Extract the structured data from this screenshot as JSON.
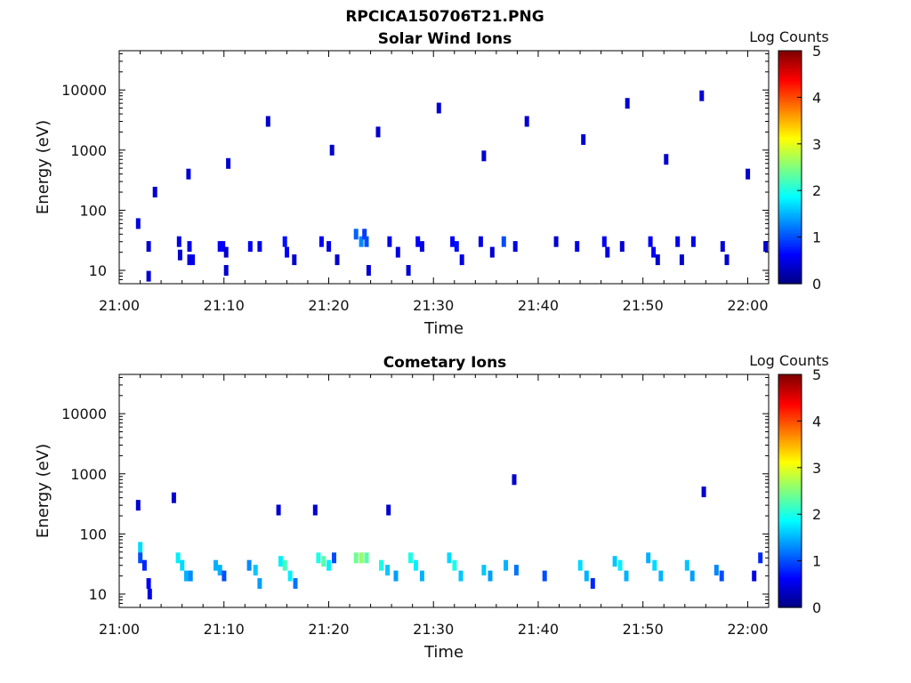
{
  "figure_title": "RPCICA150706T21.PNG",
  "colorbar": {
    "label": "Log Counts",
    "ticks": [
      "0",
      "1",
      "2",
      "3",
      "4",
      "5"
    ],
    "colormap": [
      "#00007f",
      "#0000ff",
      "#007fff",
      "#00ffff",
      "#7fff7f",
      "#ffff00",
      "#ff7f00",
      "#ff0000",
      "#7f0000"
    ]
  },
  "chart_data": [
    {
      "type": "heatmap",
      "title": "Solar Wind Ions",
      "xlabel": "Time",
      "ylabel": "Energy (eV)",
      "x_ticks": [
        "21:00",
        "21:10",
        "21:20",
        "21:30",
        "21:40",
        "21:50",
        "22:00"
      ],
      "y_ticks": [
        "10",
        "100",
        "1000",
        "10000"
      ],
      "y_scale": "log",
      "ylim": [
        6,
        45000
      ],
      "xlim": [
        "21:00",
        "22:02"
      ],
      "zlim": [
        0,
        5
      ],
      "zlabel": "Log Counts",
      "cells": [
        [
          1.6,
          60,
          0.5
        ],
        [
          2.6,
          25,
          0.4
        ],
        [
          2.6,
          8,
          0.4
        ],
        [
          5.5,
          30,
          0.5
        ],
        [
          5.6,
          18,
          0.4
        ],
        [
          6.5,
          25,
          0.5
        ],
        [
          6.5,
          15,
          0.5
        ],
        [
          6.8,
          15,
          0.5
        ],
        [
          9.4,
          25,
          0.6
        ],
        [
          9.7,
          25,
          0.6
        ],
        [
          10.0,
          20,
          0.4
        ],
        [
          10.0,
          10,
          0.4
        ],
        [
          12.3,
          25,
          0.6
        ],
        [
          13.2,
          25,
          0.5
        ],
        [
          15.6,
          30,
          0.7
        ],
        [
          15.8,
          20,
          0.6
        ],
        [
          16.5,
          15,
          0.4
        ],
        [
          19.1,
          30,
          0.6
        ],
        [
          19.8,
          25,
          0.5
        ],
        [
          20.6,
          15,
          0.4
        ],
        [
          22.4,
          40,
          1.1
        ],
        [
          22.9,
          30,
          1.3
        ],
        [
          23.2,
          40,
          0.9
        ],
        [
          23.4,
          30,
          1.0
        ],
        [
          23.6,
          10,
          0.4
        ],
        [
          25.6,
          30,
          0.5
        ],
        [
          26.4,
          20,
          0.5
        ],
        [
          27.4,
          10,
          0.4
        ],
        [
          28.3,
          30,
          0.6
        ],
        [
          28.7,
          25,
          0.5
        ],
        [
          31.6,
          30,
          0.6
        ],
        [
          32.0,
          25,
          0.7
        ],
        [
          32.5,
          15,
          0.5
        ],
        [
          34.3,
          30,
          0.5
        ],
        [
          35.4,
          20,
          0.4
        ],
        [
          36.5,
          30,
          1.0
        ],
        [
          37.6,
          25,
          0.5
        ],
        [
          41.5,
          30,
          0.4
        ],
        [
          43.5,
          25,
          0.5
        ],
        [
          46.1,
          30,
          0.6
        ],
        [
          46.4,
          20,
          0.5
        ],
        [
          47.8,
          25,
          0.4
        ],
        [
          50.5,
          30,
          0.6
        ],
        [
          50.8,
          20,
          0.6
        ],
        [
          51.2,
          15,
          0.4
        ],
        [
          53.1,
          30,
          0.5
        ],
        [
          53.5,
          15,
          0.4
        ],
        [
          54.6,
          30,
          0.5
        ],
        [
          57.4,
          25,
          0.4
        ],
        [
          57.8,
          15,
          0.4
        ],
        [
          61.5,
          25,
          0.4
        ],
        [
          3.2,
          200,
          0.4
        ],
        [
          6.4,
          400,
          0.4
        ],
        [
          10.2,
          600,
          0.4
        ],
        [
          14.0,
          3000,
          0.4
        ],
        [
          20.1,
          1000,
          0.4
        ],
        [
          24.5,
          2000,
          0.4
        ],
        [
          30.3,
          5000,
          0.4
        ],
        [
          34.6,
          800,
          0.4
        ],
        [
          38.7,
          3000,
          0.4
        ],
        [
          44.1,
          1500,
          0.4
        ],
        [
          48.3,
          6000,
          0.4
        ],
        [
          52.0,
          700,
          0.4
        ],
        [
          55.4,
          8000,
          0.4
        ],
        [
          59.8,
          400,
          0.4
        ]
      ]
    },
    {
      "type": "heatmap",
      "title": "Cometary Ions",
      "xlabel": "Time",
      "ylabel": "Energy (eV)",
      "x_ticks": [
        "21:00",
        "21:10",
        "21:20",
        "21:30",
        "21:40",
        "21:50",
        "22:00"
      ],
      "y_ticks": [
        "10",
        "100",
        "1000",
        "10000"
      ],
      "y_scale": "log",
      "ylim": [
        6,
        45000
      ],
      "xlim": [
        "21:00",
        "22:02"
      ],
      "zlim": [
        0,
        5
      ],
      "zlabel": "Log Counts",
      "cells": [
        [
          1.8,
          60,
          1.7
        ],
        [
          1.8,
          40,
          1.0
        ],
        [
          2.2,
          30,
          0.8
        ],
        [
          2.6,
          15,
          0.6
        ],
        [
          2.7,
          10,
          0.5
        ],
        [
          5.4,
          40,
          1.8
        ],
        [
          5.8,
          30,
          1.7
        ],
        [
          6.2,
          20,
          1.5
        ],
        [
          6.6,
          20,
          1.3
        ],
        [
          9.0,
          30,
          1.5
        ],
        [
          9.4,
          25,
          1.5
        ],
        [
          9.8,
          20,
          1.0
        ],
        [
          12.2,
          30,
          1.3
        ],
        [
          12.8,
          25,
          1.6
        ],
        [
          13.2,
          15,
          1.4
        ],
        [
          15.2,
          35,
          1.8
        ],
        [
          15.6,
          30,
          2.2
        ],
        [
          16.1,
          20,
          1.8
        ],
        [
          16.6,
          15,
          1.2
        ],
        [
          18.8,
          40,
          2.0
        ],
        [
          19.3,
          35,
          2.3
        ],
        [
          19.8,
          30,
          1.8
        ],
        [
          20.3,
          40,
          1.0
        ],
        [
          22.4,
          40,
          2.4
        ],
        [
          22.9,
          40,
          2.6
        ],
        [
          23.4,
          40,
          2.3
        ],
        [
          24.8,
          30,
          2.0
        ],
        [
          25.4,
          25,
          1.6
        ],
        [
          26.2,
          20,
          1.4
        ],
        [
          27.6,
          40,
          2.0
        ],
        [
          28.1,
          30,
          1.8
        ],
        [
          28.7,
          20,
          1.5
        ],
        [
          31.3,
          40,
          1.7
        ],
        [
          31.8,
          30,
          2.0
        ],
        [
          32.4,
          20,
          1.6
        ],
        [
          34.6,
          25,
          1.6
        ],
        [
          35.2,
          20,
          1.4
        ],
        [
          36.7,
          30,
          1.5
        ],
        [
          37.7,
          25,
          1.2
        ],
        [
          40.4,
          20,
          1.0
        ],
        [
          43.8,
          30,
          1.7
        ],
        [
          44.4,
          20,
          1.5
        ],
        [
          45.0,
          15,
          0.8
        ],
        [
          47.1,
          35,
          1.6
        ],
        [
          47.6,
          30,
          1.8
        ],
        [
          48.2,
          20,
          1.5
        ],
        [
          50.3,
          40,
          1.5
        ],
        [
          50.9,
          30,
          1.7
        ],
        [
          51.5,
          20,
          1.5
        ],
        [
          54.0,
          30,
          1.6
        ],
        [
          54.5,
          20,
          1.4
        ],
        [
          56.8,
          25,
          1.3
        ],
        [
          57.3,
          20,
          1.0
        ],
        [
          60.4,
          20,
          0.5
        ],
        [
          61.0,
          40,
          0.8
        ],
        [
          1.6,
          300,
          0.4
        ],
        [
          5.0,
          400,
          0.4
        ],
        [
          15.0,
          250,
          0.4
        ],
        [
          18.5,
          250,
          0.4
        ],
        [
          25.5,
          250,
          0.4
        ],
        [
          37.5,
          800,
          0.4
        ],
        [
          55.6,
          500,
          0.4
        ]
      ]
    }
  ]
}
